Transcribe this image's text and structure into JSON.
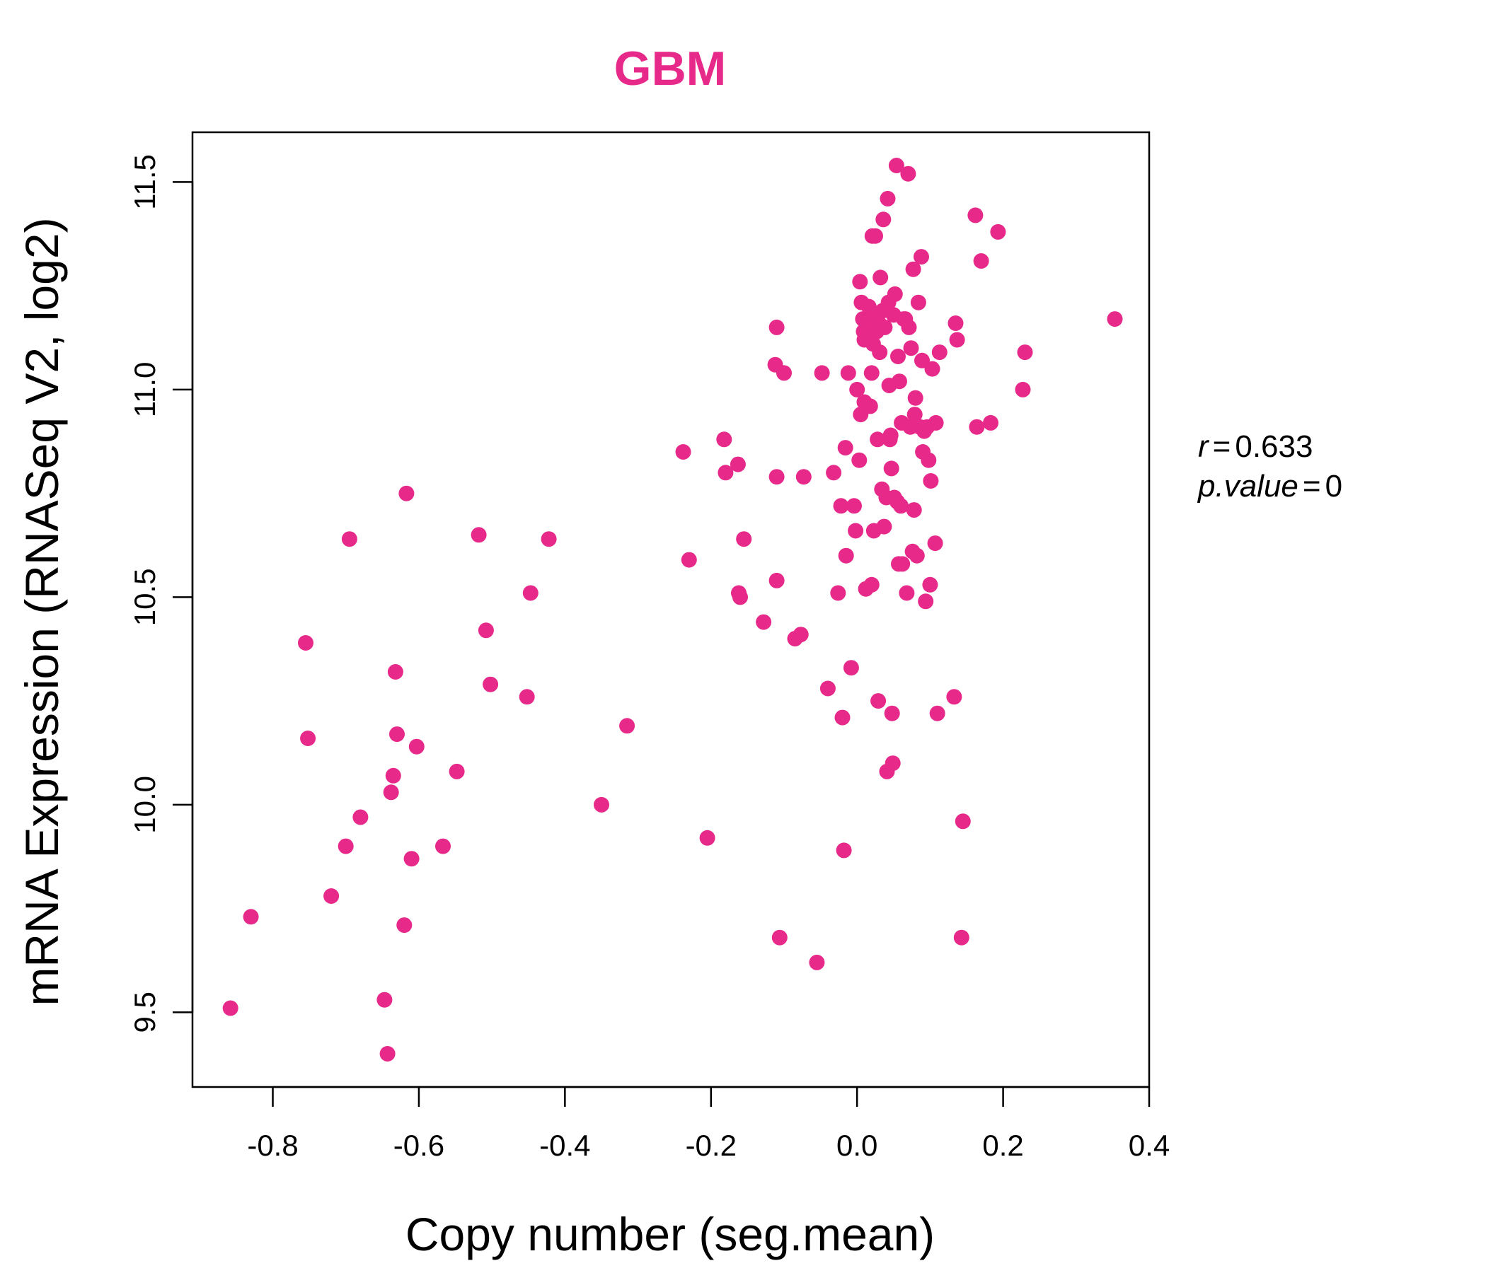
{
  "chart_data": {
    "type": "scatter",
    "title": "GBM",
    "xlabel": "Copy number (seg.mean)",
    "ylabel": "mRNA Expression (RNASeq V2, log2)",
    "xlim": [
      -0.91,
      0.4
    ],
    "ylim": [
      9.32,
      11.62
    ],
    "x_ticks": [
      -0.8,
      -0.6,
      -0.4,
      -0.2,
      0.0,
      0.2,
      0.4
    ],
    "x_tick_labels": [
      "-0.8",
      "-0.6",
      "-0.4",
      "-0.2",
      "0.0",
      "0.2",
      "0.4"
    ],
    "y_ticks": [
      9.5,
      10.0,
      10.5,
      11.0,
      11.5
    ],
    "y_tick_labels": [
      "9.5",
      "10.0",
      "10.5",
      "11.0",
      "11.5"
    ],
    "grid": false,
    "point_color": "#E7298A",
    "annotation": {
      "r_symbol": "r",
      "r_value": "0.633",
      "p_symbol": "p.value",
      "p_value": "0",
      "equals": "="
    },
    "points": [
      [
        -0.858,
        9.51
      ],
      [
        -0.83,
        9.73
      ],
      [
        -0.755,
        10.39
      ],
      [
        -0.752,
        10.16
      ],
      [
        -0.72,
        9.78
      ],
      [
        -0.7,
        9.9
      ],
      [
        -0.695,
        10.64
      ],
      [
        -0.68,
        9.97
      ],
      [
        -0.647,
        9.53
      ],
      [
        -0.643,
        9.4
      ],
      [
        -0.638,
        10.03
      ],
      [
        -0.635,
        10.07
      ],
      [
        -0.632,
        10.32
      ],
      [
        -0.63,
        10.17
      ],
      [
        -0.62,
        9.71
      ],
      [
        -0.617,
        10.75
      ],
      [
        -0.61,
        9.87
      ],
      [
        -0.603,
        10.14
      ],
      [
        -0.567,
        9.9
      ],
      [
        -0.548,
        10.08
      ],
      [
        -0.518,
        10.65
      ],
      [
        -0.508,
        10.42
      ],
      [
        -0.502,
        10.29
      ],
      [
        -0.452,
        10.26
      ],
      [
        -0.447,
        10.51
      ],
      [
        -0.422,
        10.64
      ],
      [
        -0.35,
        10.0
      ],
      [
        -0.315,
        10.19
      ],
      [
        -0.238,
        10.85
      ],
      [
        -0.23,
        10.59
      ],
      [
        -0.205,
        9.92
      ],
      [
        -0.182,
        10.88
      ],
      [
        -0.18,
        10.8
      ],
      [
        -0.163,
        10.82
      ],
      [
        -0.162,
        10.51
      ],
      [
        -0.16,
        10.5
      ],
      [
        -0.155,
        10.64
      ],
      [
        -0.128,
        10.44
      ],
      [
        -0.112,
        11.06
      ],
      [
        -0.11,
        11.15
      ],
      [
        -0.11,
        10.79
      ],
      [
        -0.11,
        10.54
      ],
      [
        -0.106,
        9.68
      ],
      [
        -0.1,
        11.04
      ],
      [
        -0.085,
        10.4
      ],
      [
        -0.077,
        10.41
      ],
      [
        -0.073,
        10.79
      ],
      [
        -0.055,
        9.62
      ],
      [
        -0.048,
        11.04
      ],
      [
        -0.04,
        10.28
      ],
      [
        -0.032,
        10.8
      ],
      [
        -0.026,
        10.51
      ],
      [
        -0.022,
        10.72
      ],
      [
        -0.02,
        10.21
      ],
      [
        -0.018,
        9.89
      ],
      [
        -0.016,
        10.86
      ],
      [
        -0.015,
        10.6
      ],
      [
        -0.012,
        11.04
      ],
      [
        -0.008,
        10.33
      ],
      [
        -0.004,
        10.72
      ],
      [
        -0.002,
        10.66
      ],
      [
        0.0,
        11.0
      ],
      [
        0.003,
        10.83
      ],
      [
        0.004,
        11.26
      ],
      [
        0.005,
        10.94
      ],
      [
        0.006,
        11.21
      ],
      [
        0.008,
        11.17
      ],
      [
        0.009,
        11.14
      ],
      [
        0.01,
        11.12
      ],
      [
        0.01,
        10.97
      ],
      [
        0.012,
        10.52
      ],
      [
        0.014,
        11.16
      ],
      [
        0.015,
        11.13
      ],
      [
        0.016,
        11.2
      ],
      [
        0.018,
        10.96
      ],
      [
        0.02,
        11.04
      ],
      [
        0.02,
        10.53
      ],
      [
        0.021,
        11.37
      ],
      [
        0.022,
        11.11
      ],
      [
        0.023,
        10.66
      ],
      [
        0.025,
        11.37
      ],
      [
        0.026,
        11.18
      ],
      [
        0.027,
        11.14
      ],
      [
        0.028,
        10.88
      ],
      [
        0.029,
        10.25
      ],
      [
        0.03,
        11.16
      ],
      [
        0.031,
        11.09
      ],
      [
        0.032,
        11.27
      ],
      [
        0.034,
        10.76
      ],
      [
        0.035,
        11.19
      ],
      [
        0.036,
        11.41
      ],
      [
        0.037,
        10.67
      ],
      [
        0.038,
        11.15
      ],
      [
        0.04,
        10.74
      ],
      [
        0.041,
        10.08
      ],
      [
        0.042,
        11.46
      ],
      [
        0.043,
        11.21
      ],
      [
        0.044,
        11.01
      ],
      [
        0.045,
        10.88
      ],
      [
        0.046,
        10.89
      ],
      [
        0.047,
        10.81
      ],
      [
        0.048,
        10.22
      ],
      [
        0.049,
        10.1
      ],
      [
        0.05,
        11.18
      ],
      [
        0.051,
        10.74
      ],
      [
        0.052,
        11.23
      ],
      [
        0.054,
        11.54
      ],
      [
        0.055,
        10.73
      ],
      [
        0.056,
        11.08
      ],
      [
        0.057,
        10.58
      ],
      [
        0.058,
        11.02
      ],
      [
        0.06,
        10.72
      ],
      [
        0.061,
        10.92
      ],
      [
        0.062,
        10.58
      ],
      [
        0.064,
        11.17
      ],
      [
        0.066,
        11.17
      ],
      [
        0.068,
        10.51
      ],
      [
        0.07,
        11.52
      ],
      [
        0.071,
        11.15
      ],
      [
        0.073,
        10.91
      ],
      [
        0.074,
        11.1
      ],
      [
        0.076,
        10.61
      ],
      [
        0.077,
        11.29
      ],
      [
        0.078,
        10.71
      ],
      [
        0.079,
        10.94
      ],
      [
        0.08,
        10.98
      ],
      [
        0.082,
        10.6
      ],
      [
        0.084,
        11.21
      ],
      [
        0.086,
        10.91
      ],
      [
        0.088,
        11.32
      ],
      [
        0.089,
        11.07
      ],
      [
        0.09,
        10.85
      ],
      [
        0.092,
        10.9
      ],
      [
        0.094,
        10.49
      ],
      [
        0.096,
        10.91
      ],
      [
        0.098,
        10.83
      ],
      [
        0.1,
        10.53
      ],
      [
        0.101,
        10.78
      ],
      [
        0.103,
        11.05
      ],
      [
        0.107,
        10.63
      ],
      [
        0.108,
        10.92
      ],
      [
        0.11,
        10.22
      ],
      [
        0.113,
        11.09
      ],
      [
        0.133,
        10.26
      ],
      [
        0.135,
        11.16
      ],
      [
        0.137,
        11.12
      ],
      [
        0.143,
        9.68
      ],
      [
        0.145,
        9.96
      ],
      [
        0.162,
        11.42
      ],
      [
        0.164,
        10.91
      ],
      [
        0.17,
        11.31
      ],
      [
        0.183,
        10.92
      ],
      [
        0.193,
        11.38
      ],
      [
        0.227,
        11.0
      ],
      [
        0.23,
        11.09
      ],
      [
        0.353,
        11.17
      ]
    ]
  }
}
